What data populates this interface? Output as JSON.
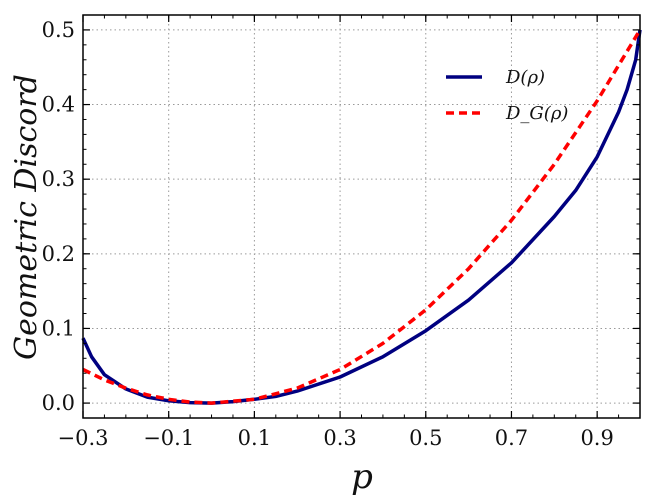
{
  "chart_data": {
    "type": "line",
    "title": "",
    "xlabel": "p",
    "ylabel": "Geometric Discord",
    "xlim": [
      -0.3,
      1.0
    ],
    "ylim": [
      -0.02,
      0.52
    ],
    "xticks": [
      -0.3,
      -0.1,
      0.1,
      0.3,
      0.5,
      0.7,
      0.9
    ],
    "xtick_labels": [
      "−0.3",
      "−0.1",
      "0.1",
      "0.3",
      "0.5",
      "0.7",
      "0.9"
    ],
    "yticks": [
      0.0,
      0.1,
      0.2,
      0.3,
      0.4,
      0.5
    ],
    "ytick_labels": [
      "0.0",
      "0.1",
      "0.2",
      "0.3",
      "0.4",
      "0.5"
    ],
    "grid": true,
    "legend_position": "top-right",
    "series": [
      {
        "name": "D(ρ)",
        "color": "#000080",
        "style": "solid",
        "x": [
          -0.3,
          -0.28,
          -0.25,
          -0.2,
          -0.15,
          -0.1,
          -0.05,
          0.0,
          0.05,
          0.1,
          0.15,
          0.2,
          0.3,
          0.4,
          0.5,
          0.6,
          0.7,
          0.8,
          0.85,
          0.9,
          0.95,
          0.97,
          0.99,
          1.0
        ],
        "values": [
          0.087,
          0.062,
          0.038,
          0.019,
          0.008,
          0.003,
          0.0006,
          0.0,
          0.002,
          0.005,
          0.009,
          0.016,
          0.035,
          0.062,
          0.097,
          0.138,
          0.188,
          0.25,
          0.285,
          0.33,
          0.39,
          0.42,
          0.46,
          0.5
        ]
      },
      {
        "name": "D_G(ρ)",
        "color": "#ff0000",
        "style": "dashed",
        "x": [
          -0.3,
          -0.25,
          -0.2,
          -0.15,
          -0.1,
          -0.05,
          0.0,
          0.1,
          0.2,
          0.3,
          0.4,
          0.5,
          0.6,
          0.7,
          0.8,
          0.9,
          1.0
        ],
        "values": [
          0.045,
          0.031,
          0.02,
          0.011,
          0.005,
          0.0013,
          0.0,
          0.005,
          0.02,
          0.045,
          0.08,
          0.125,
          0.18,
          0.245,
          0.32,
          0.405,
          0.5
        ]
      }
    ]
  }
}
